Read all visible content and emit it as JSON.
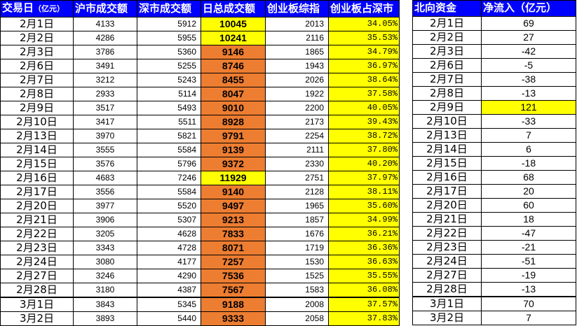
{
  "left_table": {
    "headers": [
      "交易日（亿元）",
      "沪市成交额",
      "深市成交额",
      "日总成交额",
      "创业板综指",
      "创业板占深市"
    ],
    "header_parts": {
      "h0_main": "交易日",
      "h0_sub": "（亿元）"
    },
    "rows": [
      {
        "date": "2月1日",
        "sh": "4133",
        "sz": "5912",
        "total": "10045",
        "cyb": "2013",
        "pct": "34.05%",
        "total_hl": "yellow"
      },
      {
        "date": "2月2日",
        "sh": "4286",
        "sz": "5955",
        "total": "10241",
        "cyb": "2116",
        "pct": "35.53%",
        "total_hl": "yellow"
      },
      {
        "date": "2月3日",
        "sh": "3786",
        "sz": "5360",
        "total": "9146",
        "cyb": "1865",
        "pct": "34.79%",
        "total_hl": "orange"
      },
      {
        "date": "2月6日",
        "sh": "3491",
        "sz": "5255",
        "total": "8746",
        "cyb": "1943",
        "pct": "36.97%",
        "total_hl": "orange"
      },
      {
        "date": "2月7日",
        "sh": "3212",
        "sz": "5243",
        "total": "8455",
        "cyb": "2026",
        "pct": "38.64%",
        "total_hl": "orange"
      },
      {
        "date": "2月8日",
        "sh": "2933",
        "sz": "5114",
        "total": "8047",
        "cyb": "1922",
        "pct": "37.58%",
        "total_hl": "orange"
      },
      {
        "date": "2月9日",
        "sh": "3517",
        "sz": "5493",
        "total": "9010",
        "cyb": "2200",
        "pct": "40.05%",
        "total_hl": "orange"
      },
      {
        "date": "2月10日",
        "sh": "3417",
        "sz": "5511",
        "total": "8928",
        "cyb": "2173",
        "pct": "39.43%",
        "total_hl": "orange"
      },
      {
        "date": "2月13日",
        "sh": "3970",
        "sz": "5821",
        "total": "9791",
        "cyb": "2254",
        "pct": "38.72%",
        "total_hl": "orange"
      },
      {
        "date": "2月14日",
        "sh": "3555",
        "sz": "5584",
        "total": "9139",
        "cyb": "2111",
        "pct": "37.80%",
        "total_hl": "orange"
      },
      {
        "date": "2月15日",
        "sh": "3576",
        "sz": "5796",
        "total": "9372",
        "cyb": "2330",
        "pct": "40.20%",
        "total_hl": "orange"
      },
      {
        "date": "2月16日",
        "sh": "4683",
        "sz": "7246",
        "total": "11929",
        "cyb": "2751",
        "pct": "37.97%",
        "total_hl": "yellow"
      },
      {
        "date": "2月17日",
        "sh": "3556",
        "sz": "5584",
        "total": "9140",
        "cyb": "2128",
        "pct": "38.11%",
        "total_hl": "orange"
      },
      {
        "date": "2月20日",
        "sh": "3977",
        "sz": "5520",
        "total": "9497",
        "cyb": "1965",
        "pct": "35.60%",
        "total_hl": "orange"
      },
      {
        "date": "2月21日",
        "sh": "3906",
        "sz": "5307",
        "total": "9213",
        "cyb": "1857",
        "pct": "34.99%",
        "total_hl": "orange"
      },
      {
        "date": "2月22日",
        "sh": "3205",
        "sz": "4628",
        "total": "7833",
        "cyb": "1676",
        "pct": "36.21%",
        "total_hl": "orange"
      },
      {
        "date": "2月23日",
        "sh": "3343",
        "sz": "4728",
        "total": "8071",
        "cyb": "1719",
        "pct": "36.36%",
        "total_hl": "orange"
      },
      {
        "date": "2月24日",
        "sh": "3080",
        "sz": "4177",
        "total": "7257",
        "cyb": "1530",
        "pct": "36.63%",
        "total_hl": "orange"
      },
      {
        "date": "2月27日",
        "sh": "3246",
        "sz": "4290",
        "total": "7536",
        "cyb": "1525",
        "pct": "35.55%",
        "total_hl": "orange"
      },
      {
        "date": "2月28日",
        "sh": "3180",
        "sz": "4387",
        "total": "7567",
        "cyb": "1583",
        "pct": "36.08%",
        "total_hl": "orange"
      },
      {
        "date": "3月1日",
        "sh": "3843",
        "sz": "5345",
        "total": "9188",
        "cyb": "2008",
        "pct": "37.57%",
        "total_hl": "orange"
      },
      {
        "date": "3月2日",
        "sh": "3893",
        "sz": "5440",
        "total": "9333",
        "cyb": "2058",
        "pct": "37.83%",
        "total_hl": "orange"
      }
    ]
  },
  "right_table": {
    "headers": [
      "北向资金",
      "净流入（亿元）"
    ],
    "rows": [
      {
        "date": "2月1日",
        "flow": "69",
        "hl": ""
      },
      {
        "date": "2月2日",
        "flow": "27",
        "hl": ""
      },
      {
        "date": "2月3日",
        "flow": "-42",
        "hl": ""
      },
      {
        "date": "2月6日",
        "flow": "-5",
        "hl": ""
      },
      {
        "date": "2月7日",
        "flow": "-38",
        "hl": ""
      },
      {
        "date": "2月8日",
        "flow": "-13",
        "hl": ""
      },
      {
        "date": "2月9日",
        "flow": "121",
        "hl": "yellow"
      },
      {
        "date": "2月10日",
        "flow": "-33",
        "hl": ""
      },
      {
        "date": "2月13日",
        "flow": "7",
        "hl": ""
      },
      {
        "date": "2月14日",
        "flow": "6",
        "hl": ""
      },
      {
        "date": "2月15日",
        "flow": "-18",
        "hl": ""
      },
      {
        "date": "2月16日",
        "flow": "68",
        "hl": ""
      },
      {
        "date": "2月17日",
        "flow": "20",
        "hl": ""
      },
      {
        "date": "2月20日",
        "flow": "60",
        "hl": ""
      },
      {
        "date": "2月21日",
        "flow": "18",
        "hl": ""
      },
      {
        "date": "2月22日",
        "flow": "-47",
        "hl": ""
      },
      {
        "date": "2月23日",
        "flow": "-21",
        "hl": ""
      },
      {
        "date": "2月24日",
        "flow": "-51",
        "hl": ""
      },
      {
        "date": "2月27日",
        "flow": "-19",
        "hl": ""
      },
      {
        "date": "2月28日",
        "flow": "-13",
        "hl": ""
      },
      {
        "date": "3月1日",
        "flow": "70",
        "hl": ""
      },
      {
        "date": "3月2日",
        "flow": "7",
        "hl": ""
      }
    ]
  },
  "colors": {
    "header_bg": "#0000ff",
    "highlight_yellow": "#ffff00",
    "highlight_orange": "#ed7d31"
  }
}
